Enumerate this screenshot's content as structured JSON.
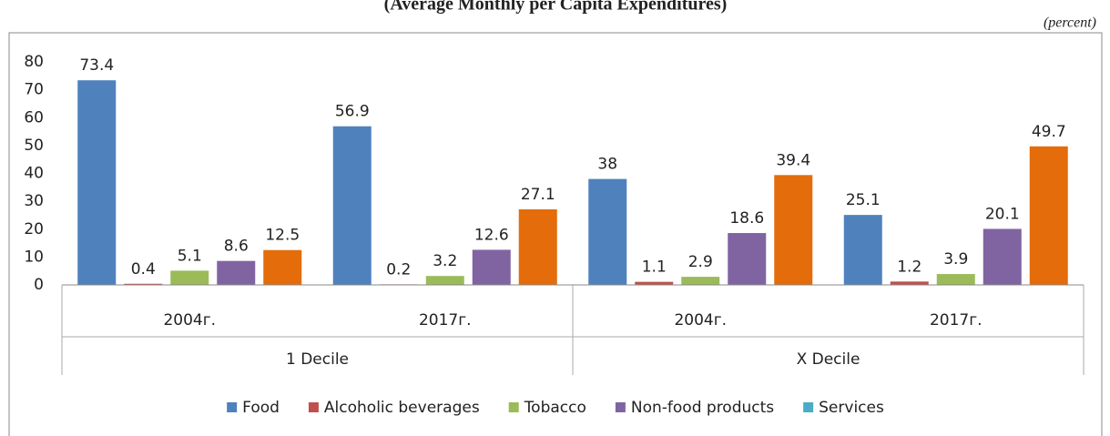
{
  "chart_data": {
    "type": "bar",
    "title": "(Average Monthly per Capita Expenditures)",
    "unit": "(percent)",
    "categories": [
      "2004г.",
      "2017г.",
      "2004г.",
      "2017г."
    ],
    "groups": [
      "1 Decile",
      "X Decile"
    ],
    "series": [
      {
        "name": "Food",
        "color": "#4f81bd",
        "values": [
          73.4,
          56.9,
          38,
          25.1
        ]
      },
      {
        "name": "Alcoholic beverages",
        "color": "#c0504d",
        "values": [
          0.4,
          0.2,
          1.1,
          1.2
        ]
      },
      {
        "name": "Tobacco",
        "color": "#9bbb59",
        "values": [
          5.1,
          3.2,
          2.9,
          3.9
        ]
      },
      {
        "name": "Non-food products",
        "color": "#8064a2",
        "values": [
          8.6,
          12.6,
          18.6,
          20.1
        ]
      },
      {
        "name": "Services",
        "color": "#e46c0a",
        "legend_color": "#4bacc6",
        "values": [
          12.5,
          27.1,
          39.4,
          49.7
        ]
      }
    ],
    "ylim": [
      0,
      80
    ],
    "yticks": [
      0,
      10,
      20,
      30,
      40,
      50,
      60,
      70,
      80
    ],
    "grid": false,
    "legend": "bottom"
  }
}
